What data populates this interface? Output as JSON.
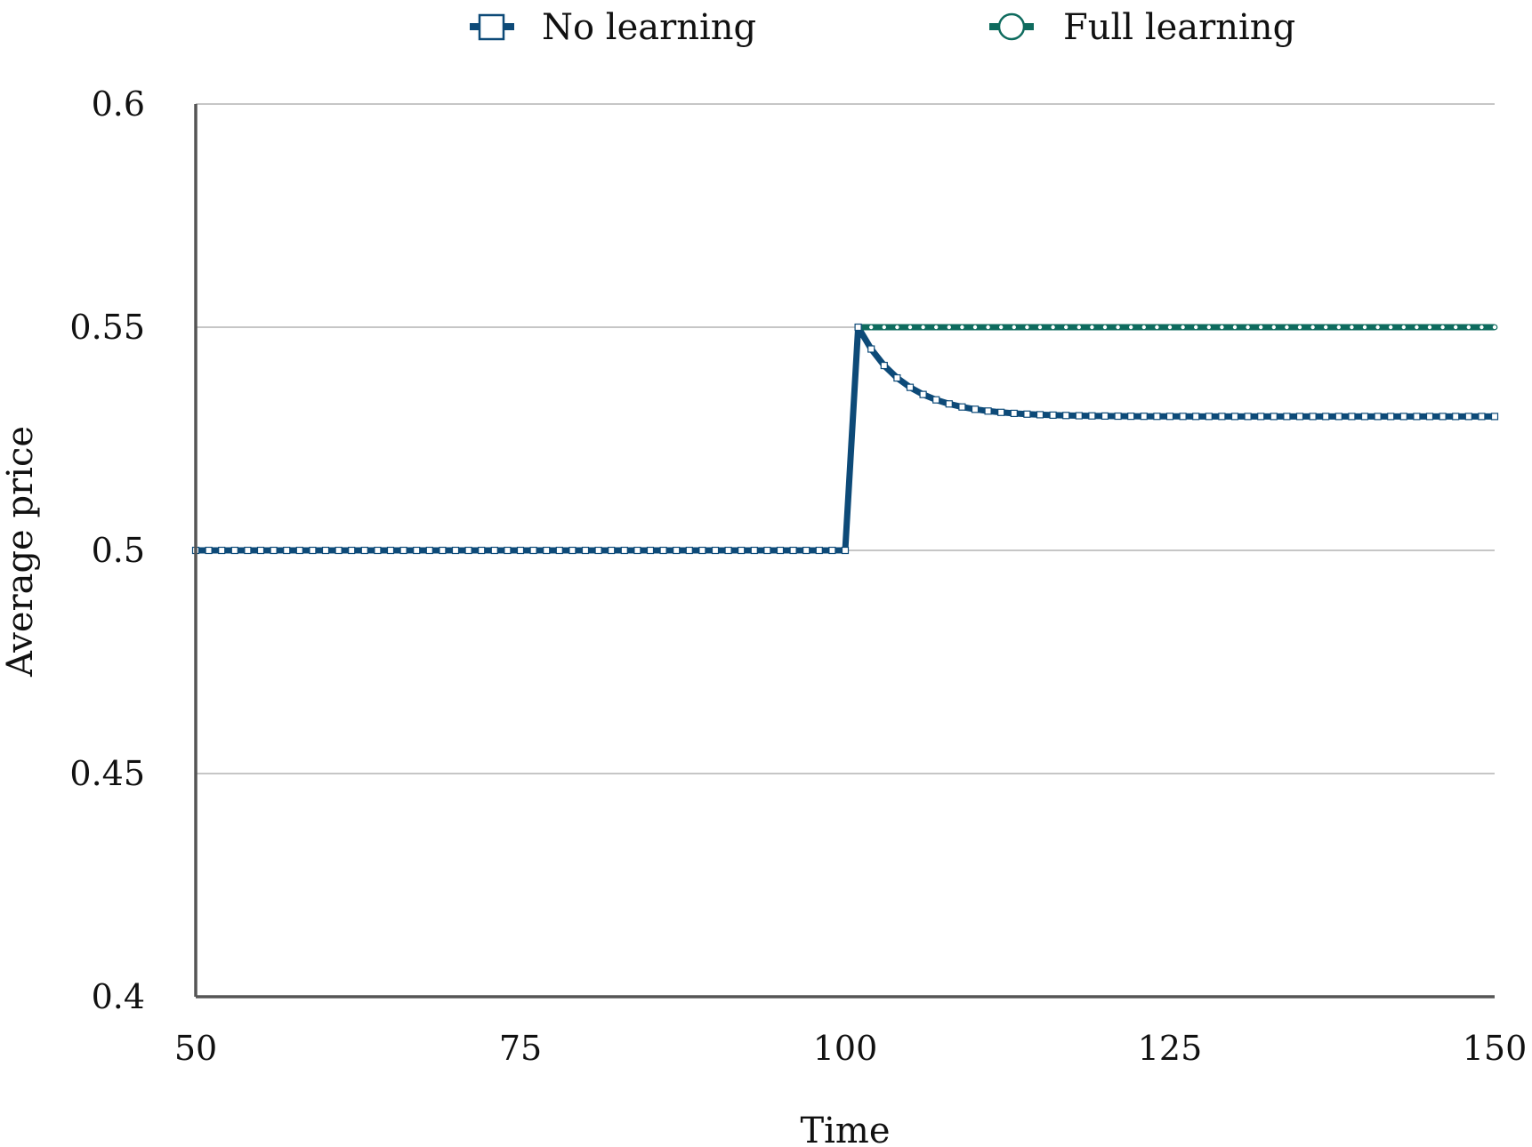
{
  "chart_data": {
    "type": "line",
    "xlabel": "Time",
    "ylabel": "Average price",
    "xlim": [
      50,
      150
    ],
    "ylim": [
      0.4,
      0.6
    ],
    "xticks": [
      "50",
      "75",
      "100",
      "125",
      "150"
    ],
    "yticks": [
      "0.4",
      "0.45",
      "0.5",
      "0.55",
      "0.6"
    ],
    "grid": "horizontal",
    "legend_position": "top",
    "series": [
      {
        "name": "No learning",
        "color": "#0d4a78",
        "marker": "square",
        "shock_time": 100,
        "base_value": 0.5,
        "peak_time": 101,
        "peak_value": 0.55,
        "steady_value": 0.53,
        "decay_rate": 0.28
      },
      {
        "name": "Full learning",
        "color": "#0e6b5e",
        "marker": "circle",
        "start_time": 101,
        "value": 0.55
      }
    ]
  }
}
